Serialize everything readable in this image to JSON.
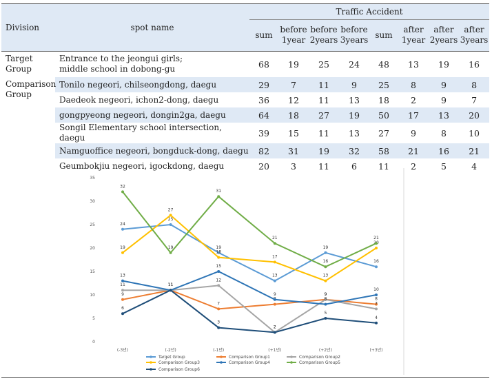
{
  "table": {
    "head": {
      "division": "Division",
      "spot_name": "spot name",
      "group_header": "Traffic Accident",
      "cols": [
        {
          "l1": "sum",
          "l2": ""
        },
        {
          "l1": "before",
          "l2": "1year"
        },
        {
          "l1": "before",
          "l2": "2years"
        },
        {
          "l1": "before",
          "l2": "3years"
        },
        {
          "l1": "sum",
          "l2": ""
        },
        {
          "l1": "after",
          "l2": "1year"
        },
        {
          "l1": "after",
          "l2": "2years"
        },
        {
          "l1": "after",
          "l2": "3years"
        }
      ]
    },
    "target_label_1": "Target",
    "target_label_2": "Group",
    "comparison_label_1": "Comparison",
    "comparison_label_2": "Group",
    "target_row": {
      "name_line1": "Entrance to the jeongui girls;",
      "name_line2": "middle school in dobong-gu",
      "values": [
        "68",
        "19",
        "25",
        "24",
        "48",
        "13",
        "19",
        "16"
      ]
    },
    "comparison_rows": [
      {
        "name": "Tonilo negeori, chilseongdong, daegu",
        "values": [
          "29",
          "7",
          "11",
          "9",
          "25",
          "8",
          "9",
          "8"
        ]
      },
      {
        "name": "Daedeok negeori, ichon2-dong, daegu",
        "values": [
          "36",
          "12",
          "11",
          "13",
          "18",
          "2",
          "9",
          "7"
        ]
      },
      {
        "name": "gongpyeong negeori, dongin2ga, daegu",
        "values": [
          "64",
          "18",
          "27",
          "19",
          "50",
          "17",
          "13",
          "20"
        ]
      },
      {
        "name": "Songil Elementary school intersection, daegu",
        "values": [
          "39",
          "15",
          "11",
          "13",
          "27",
          "9",
          "8",
          "10"
        ]
      },
      {
        "name": "Namguoffice negeori, bongduck-dong, daegu",
        "values": [
          "82",
          "31",
          "19",
          "32",
          "58",
          "21",
          "16",
          "21"
        ]
      },
      {
        "name": "Geumbokjiu negeori, igockdong, daegu",
        "values": [
          "20",
          "3",
          "11",
          "6",
          "11",
          "2",
          "5",
          "4"
        ]
      }
    ]
  },
  "chart_data": {
    "type": "line",
    "categories": [
      "(-3년)",
      "(-2년)",
      "(-1년)",
      "(+1년)",
      "(+2년)",
      "(+3년)"
    ],
    "ylim": [
      0,
      35
    ],
    "yticks": [
      "0",
      "5",
      "10",
      "15",
      "20",
      "25",
      "30",
      "35"
    ],
    "grid": false,
    "legend_position": "bottom",
    "series": [
      {
        "name": "Target Group",
        "color": "#5b9bd5",
        "values": [
          24,
          25,
          19,
          13,
          19,
          16
        ]
      },
      {
        "name": "Comparison Group1",
        "color": "#ed7d31",
        "values": [
          9,
          11,
          7,
          8,
          9,
          8
        ]
      },
      {
        "name": "Comparison Group2",
        "color": "#a5a5a5",
        "values": [
          11,
          11,
          12,
          2,
          9,
          7
        ]
      },
      {
        "name": "Comparison Group3",
        "color": "#ffc000",
        "values": [
          19,
          27,
          18,
          17,
          13,
          20
        ]
      },
      {
        "name": "Comparison Group4",
        "color": "#2e75b6",
        "values": [
          13,
          11,
          15,
          9,
          8,
          10
        ]
      },
      {
        "name": "Comparison Group5",
        "color": "#70ad47",
        "values": [
          32,
          19,
          31,
          21,
          16,
          21
        ]
      },
      {
        "name": "Comparison Group6",
        "color": "#1f4e79",
        "values": [
          6,
          11,
          3,
          2,
          5,
          4
        ]
      }
    ]
  }
}
